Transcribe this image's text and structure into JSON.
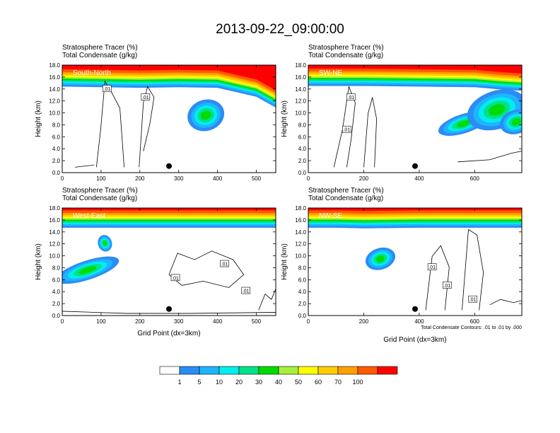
{
  "figure_title": "2013-09-22_09:00:00",
  "colorbar": {
    "colors": [
      "#ffffff",
      "#2b8cf5",
      "#1fb4ff",
      "#00eeee",
      "#00e08a",
      "#00dc00",
      "#a6f03a",
      "#ffff00",
      "#ffcc00",
      "#ffa000",
      "#ff5a00",
      "#ff0000"
    ],
    "labels": [
      "1",
      "5",
      "10",
      "20",
      "30",
      "40",
      "50",
      "60",
      "70",
      "100"
    ]
  },
  "contour_note": "Total Condensate Contours: .01 to .01 by .000",
  "contour_label": ".01",
  "chart_data": [
    {
      "type": "heatmap",
      "panel": "South-North",
      "titles": [
        "Stratosphere Tracer   (%)",
        "Total Condensate   (g/kg)"
      ],
      "ylabel": "Height (km)",
      "xlabel": "",
      "xlim": [
        0,
        550
      ],
      "ylim": [
        0,
        18
      ],
      "xticks": [
        "0",
        "100",
        "200",
        "300",
        "400",
        "500"
      ],
      "yticks": [
        "0.0",
        "2.0",
        "4.0",
        "6.0",
        "8.0",
        "10.0",
        "12.0",
        "14.0",
        "16.0",
        "18.0"
      ],
      "marker_x": 275,
      "tropopause": [
        [
          0,
          14.7
        ],
        [
          100,
          14.6
        ],
        [
          200,
          14.5
        ],
        [
          300,
          14.6
        ],
        [
          400,
          14.5
        ],
        [
          500,
          13.0
        ],
        [
          550,
          11.2
        ]
      ],
      "blobs": [
        [
          370,
          9.6,
          48,
          2.6
        ]
      ]
    },
    {
      "type": "heatmap",
      "panel": "SW-NE",
      "titles": [
        "Stratosphere Tracer   (%)",
        "Total Condensate   (g/kg)"
      ],
      "ylabel": "Height (km)",
      "xlabel": "",
      "xlim": [
        0,
        770
      ],
      "ylim": [
        0,
        18
      ],
      "xticks": [
        "0",
        "200",
        "400",
        "600"
      ],
      "yticks": [
        "0.0",
        "2.0",
        "4.0",
        "6.0",
        "8.0",
        "10.0",
        "12.0",
        "14.0",
        "16.0",
        "18.0"
      ],
      "marker_x": 385,
      "tropopause": [
        [
          0,
          14.8
        ],
        [
          200,
          14.8
        ],
        [
          400,
          14.7
        ],
        [
          600,
          14.6
        ],
        [
          700,
          14.2
        ],
        [
          770,
          14.0
        ]
      ],
      "blobs": [
        [
          560,
          8.2,
          95,
          1.6
        ],
        [
          680,
          10.5,
          110,
          3.2
        ],
        [
          750,
          8.5,
          60,
          2.0
        ]
      ]
    },
    {
      "type": "heatmap",
      "panel": "West-East",
      "titles": [
        "Stratosphere Tracer   (%)",
        "Total Condensate   (g/kg)"
      ],
      "ylabel": "Height (km)",
      "xlabel": "Grid Point (dx=3km)",
      "xlim": [
        0,
        550
      ],
      "ylim": [
        0,
        18
      ],
      "xticks": [
        "0",
        "100",
        "200",
        "300",
        "400",
        "500"
      ],
      "yticks": [
        "0.0",
        "2.0",
        "4.0",
        "6.0",
        "8.0",
        "10.0",
        "12.0",
        "14.0",
        "16.0",
        "18.0"
      ],
      "marker_x": 275,
      "tropopause": [
        [
          0,
          15.0
        ],
        [
          200,
          15.0
        ],
        [
          400,
          15.0
        ],
        [
          550,
          15.0
        ]
      ],
      "blobs": [
        [
          110,
          12.1,
          18,
          1.4
        ],
        [
          65,
          7.6,
          85,
          1.6
        ]
      ]
    },
    {
      "type": "heatmap",
      "panel": "NW-SE",
      "titles": [
        "Stratosphere Tracer   (%)",
        "Total Condensate   (g/kg)"
      ],
      "ylabel": "Height (km)",
      "xlabel": "Grid Point (dx=3km)",
      "xlim": [
        0,
        770
      ],
      "ylim": [
        0,
        18
      ],
      "xticks": [
        "0",
        "200",
        "400",
        "600"
      ],
      "yticks": [
        "0.0",
        "2.0",
        "4.0",
        "6.0",
        "8.0",
        "10.0",
        "12.0",
        "14.0",
        "16.0",
        "18.0"
      ],
      "marker_x": 385,
      "tropopause": [
        [
          0,
          15.0
        ],
        [
          100,
          15.0
        ],
        [
          200,
          14.9
        ],
        [
          400,
          15.0
        ],
        [
          770,
          15.0
        ]
      ],
      "blobs": [
        [
          260,
          9.5,
          55,
          1.8
        ]
      ]
    }
  ]
}
